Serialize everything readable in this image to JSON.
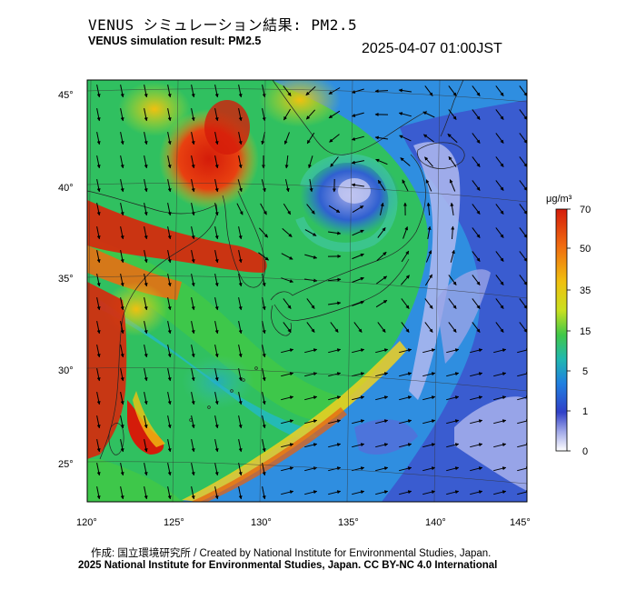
{
  "header": {
    "title_jp": "VENUS シミュレーション結果: PM2.5",
    "title_en": "VENUS simulation result: PM2.5",
    "timestamp": "2025-04-07 01:00JST"
  },
  "map": {
    "lon_labels": [
      "120°",
      "125°",
      "130°",
      "135°",
      "140°",
      "145°"
    ],
    "lat_labels": [
      "45°",
      "40°",
      "35°",
      "30°",
      "25°"
    ],
    "colorbar": {
      "unit": "μg/m³",
      "ticks": [
        "70",
        "50",
        "35",
        "15",
        "5",
        "1",
        "0"
      ],
      "colors": [
        "#d41c0a",
        "#f06a10",
        "#f0c010",
        "#c8e020",
        "#40c848",
        "#20b8b0",
        "#2080e0",
        "#3040c8",
        "#a0a8e8",
        "#ffffff"
      ]
    }
  },
  "footer": {
    "credit": "作成: 国立環境研究所 / Created by National Institute for Environmental Studies, Japan.",
    "license": "2025 National Institute for Environmental Studies, Japan. CC BY-NC 4.0 International"
  }
}
